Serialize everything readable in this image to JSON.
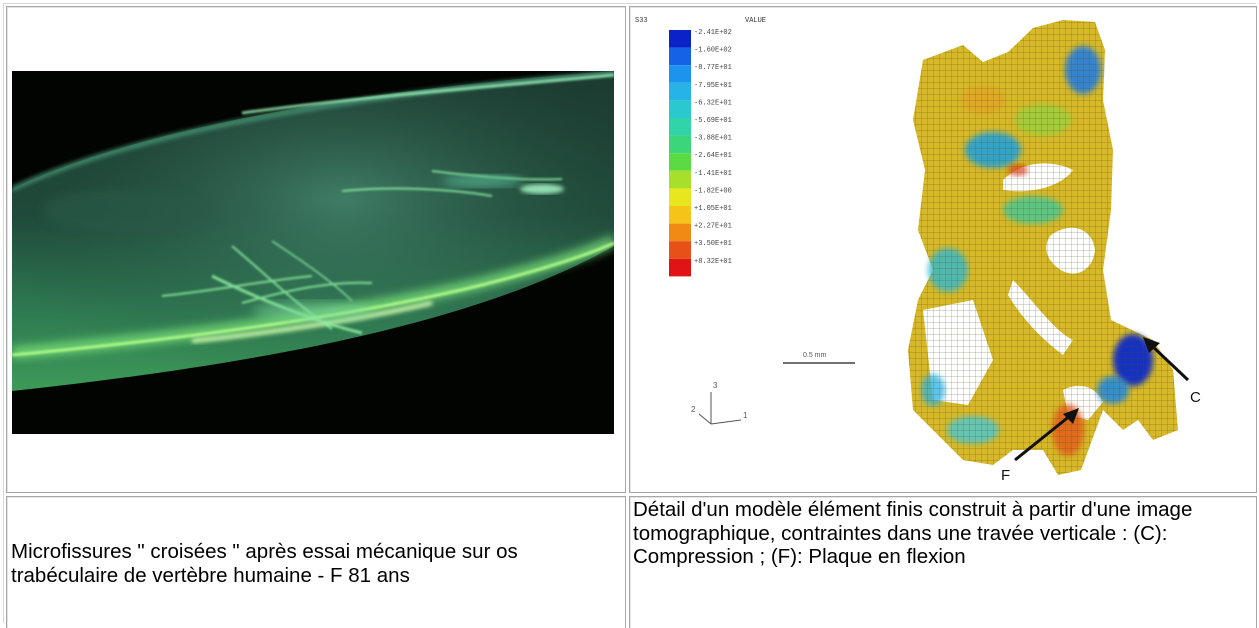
{
  "figure_left": {
    "caption": "Microfissures \" croisées \" après essai mécanique sur os trabéculaire de vertèbre humaine - F 81 ans"
  },
  "figure_right": {
    "caption": "Détail d'un modèle élément finis construit à partir d'une image tomographique, contraintes dans une travée verticale : (C): Compression ; (F): Plaque en flexion",
    "legend_header_left": "S33",
    "legend_header_right": "VALUE",
    "legend_values": [
      "-2.41E+02",
      "-1.60E+02",
      "-8.77E+01",
      "-7.95E+01",
      "-6.32E+01",
      "-5.69E+01",
      "-3.88E+01",
      "-2.64E+01",
      "-1.41E+01",
      "-1.82E+00",
      "+1.05E+01",
      "+2.27E+01",
      "+3.50E+01",
      "+8.32E+01"
    ],
    "legend_colors": [
      "#0a22c8",
      "#1462e6",
      "#1c93ee",
      "#26b4e6",
      "#2cc8d0",
      "#30d4a8",
      "#3cd67a",
      "#5cda44",
      "#a6e02a",
      "#e8e61e",
      "#f5c418",
      "#f08a12",
      "#e8501a",
      "#e01414"
    ],
    "scale_label": "0.5 mm",
    "axis_labels": [
      "3",
      "2",
      "1"
    ],
    "marker_c": "C",
    "marker_f": "F"
  }
}
